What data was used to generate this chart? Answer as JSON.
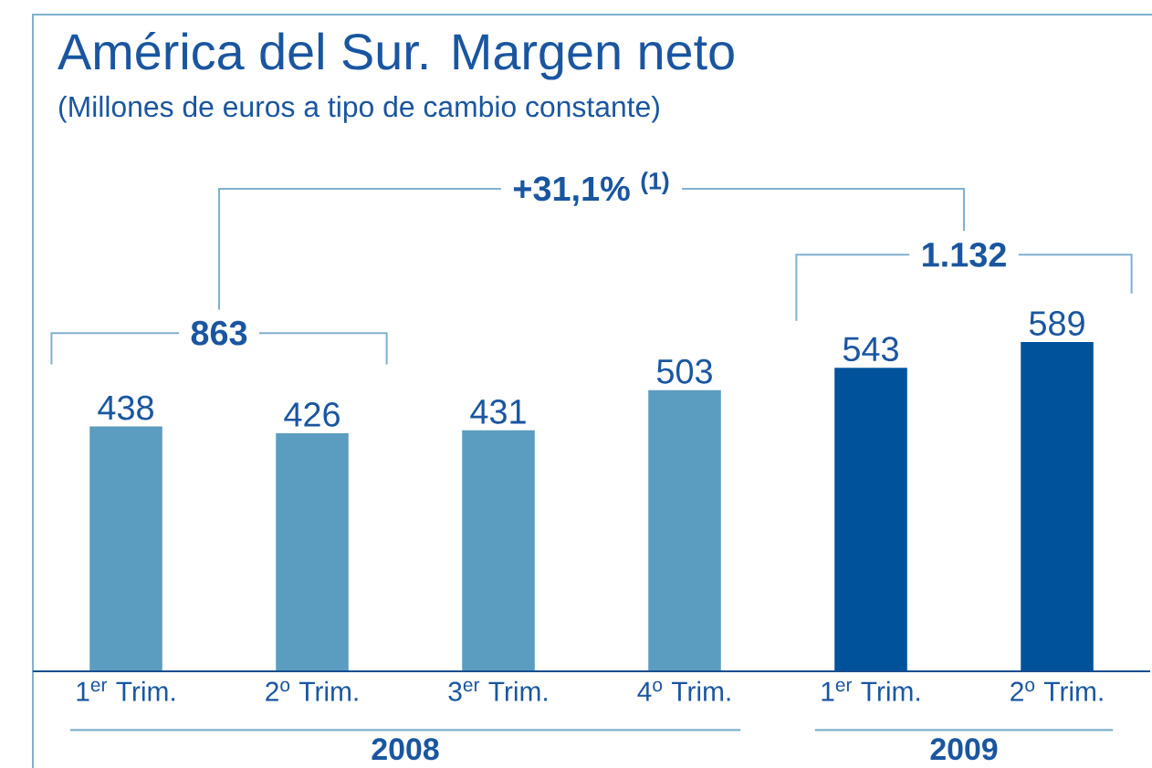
{
  "chart_data": {
    "type": "bar",
    "title": "América del Sur. Margen neto",
    "subtitle": "(Millones de euros a tipo de cambio constante)",
    "categories": [
      "1$^{er}$ Trim.",
      "2$^{o}$ Trim.",
      "3$^{er}$ Trim.",
      "4$^{o}$ Trim.",
      "1$^{er}$ Trim.",
      "2$^{o}$ Trim."
    ],
    "values": [
      438,
      426,
      431,
      503,
      543,
      589
    ],
    "colors": [
      "#5b9dc0",
      "#5b9dc0",
      "#5b9dc0",
      "#5b9dc0",
      "#00529b",
      "#00529b"
    ],
    "data_labels": true,
    "annotations": [
      "+31,1% $^{(1)}$",
      "863",
      "1.132",
      "2008",
      "2009"
    ]
  }
}
